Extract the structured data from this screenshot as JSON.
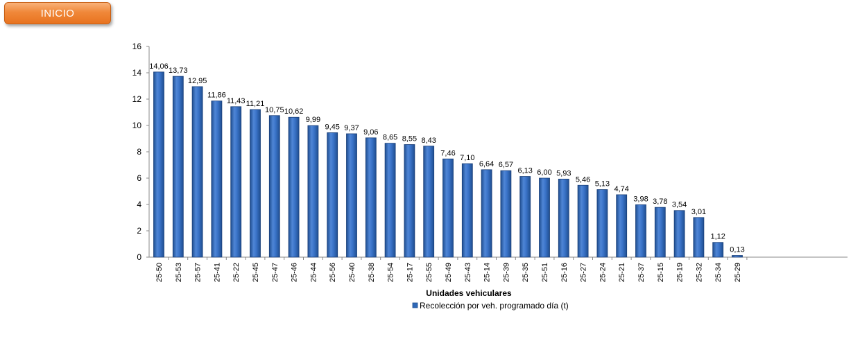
{
  "nav": {
    "inicio_label": "INICIO"
  },
  "colors": {
    "bar": "#2f68b8",
    "bar_dark": "#1f4e90",
    "bar_light": "#6f9be0",
    "button": "#f0883a"
  },
  "chart_data": {
    "type": "bar",
    "xlabel": "Unidades vehiculares",
    "ylabel": "",
    "ylim": [
      0,
      16
    ],
    "yticks": [
      0,
      2,
      4,
      6,
      8,
      10,
      12,
      14,
      16
    ],
    "grid": false,
    "legend_position": "bottom",
    "categories": [
      "25-50",
      "25-53",
      "25-57",
      "25-41",
      "25-22",
      "25-45",
      "25-47",
      "25-46",
      "25-44",
      "25-56",
      "25-40",
      "25-38",
      "25-54",
      "25-17",
      "25-55",
      "25-49",
      "25-43",
      "25-14",
      "25-39",
      "25-35",
      "25-51",
      "25-16",
      "25-27",
      "25-24",
      "25-21",
      "25-37",
      "25-15",
      "25-19",
      "25-32",
      "25-34",
      "25-29"
    ],
    "series": [
      {
        "name": "Recolección por veh. programado día (t)",
        "values": [
          14.06,
          13.73,
          12.95,
          11.86,
          11.43,
          11.21,
          10.75,
          10.62,
          9.99,
          9.45,
          9.37,
          9.06,
          8.65,
          8.55,
          8.43,
          7.46,
          7.1,
          6.64,
          6.57,
          6.13,
          6.0,
          5.93,
          5.46,
          5.13,
          4.74,
          3.98,
          3.78,
          3.54,
          3.01,
          1.12,
          0.13
        ],
        "labels": [
          "14,06",
          "13,73",
          "12,95",
          "11,86",
          "11,43",
          "11,21",
          "10,75",
          "10,62",
          "9,99",
          "9,45",
          "9,37",
          "9,06",
          "8,65",
          "8,55",
          "8,43",
          "7,46",
          "7,10",
          "6,64",
          "6,57",
          "6,13",
          "6,00",
          "5,93",
          "5,46",
          "5,13",
          "4,74",
          "3,98",
          "3,78",
          "3,54",
          "3,01",
          "1,12",
          "0,13"
        ]
      }
    ]
  }
}
